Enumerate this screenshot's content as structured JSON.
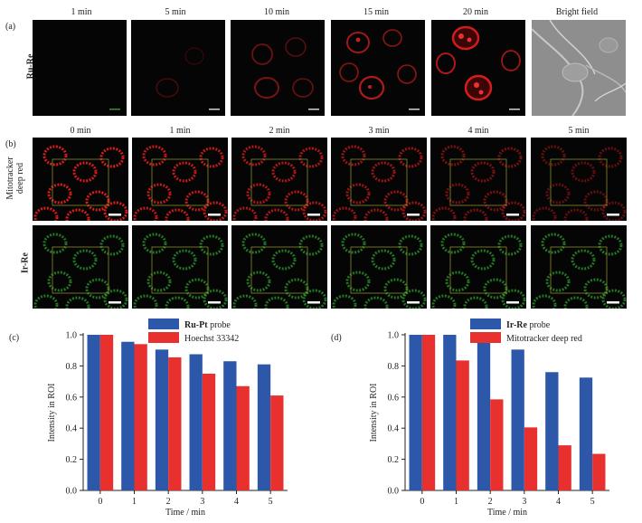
{
  "panel_a": {
    "letter": "(a)",
    "row_label": "Ru-Re",
    "time_labels": [
      "1 min",
      "5 min",
      "10 min",
      "15 min",
      "20 min",
      "Bright field"
    ]
  },
  "panel_b": {
    "letter": "(b)",
    "time_labels": [
      "0 min",
      "1 min",
      "2 min",
      "3 min",
      "4 min",
      "5 min"
    ],
    "row1_label_line1": "Mitotracker",
    "row1_label_line2": "deep red",
    "row2_label": "Ir-Re"
  },
  "colors": {
    "blue": "#2d57a8",
    "red": "#e8302f",
    "microscopy_red": "#d81c1c",
    "microscopy_green": "#2f9a2f",
    "roi_box": "#8a8a2a"
  },
  "chart_data": [
    {
      "type": "bar",
      "panel": "(c)",
      "categories": [
        "0",
        "1",
        "2",
        "3",
        "4",
        "5"
      ],
      "series": [
        {
          "name": "Ru-Pt probe",
          "bold_part": "Ru-Pt",
          "rest": " probe",
          "color": "#2d57a8",
          "values": [
            1.0,
            0.955,
            0.905,
            0.875,
            0.83,
            0.81
          ]
        },
        {
          "name": "Hoechst 33342",
          "bold_part": "",
          "rest": "Hoechst 33342",
          "color": "#e8302f",
          "values": [
            1.0,
            0.94,
            0.855,
            0.75,
            0.67,
            0.61
          ]
        }
      ],
      "xlabel": "Time / min",
      "ylabel": "Intensity in ROI",
      "ylim": [
        0,
        1.0
      ],
      "yticks": [
        "0.0",
        "0.2",
        "0.4",
        "0.6",
        "0.8",
        "1.0"
      ],
      "legend": "top"
    },
    {
      "type": "bar",
      "panel": "(d)",
      "categories": [
        "0",
        "1",
        "2",
        "3",
        "4",
        "5"
      ],
      "series": [
        {
          "name": "Ir-Re probe",
          "bold_part": "Ir-Re",
          "rest": " probe",
          "color": "#2d57a8",
          "values": [
            1.0,
            1.0,
            0.99,
            0.905,
            0.76,
            0.725
          ]
        },
        {
          "name": "Mitotracker deep red",
          "bold_part": "",
          "rest": "Mitotracker deep red",
          "color": "#e8302f",
          "values": [
            1.0,
            0.835,
            0.585,
            0.405,
            0.29,
            0.235
          ]
        }
      ],
      "xlabel": "Time / min",
      "ylabel": "Intensity in ROI",
      "ylim": [
        0,
        1.0
      ],
      "yticks": [
        "0.0",
        "0.2",
        "0.4",
        "0.6",
        "0.8",
        "1.0"
      ],
      "legend": "top"
    }
  ]
}
